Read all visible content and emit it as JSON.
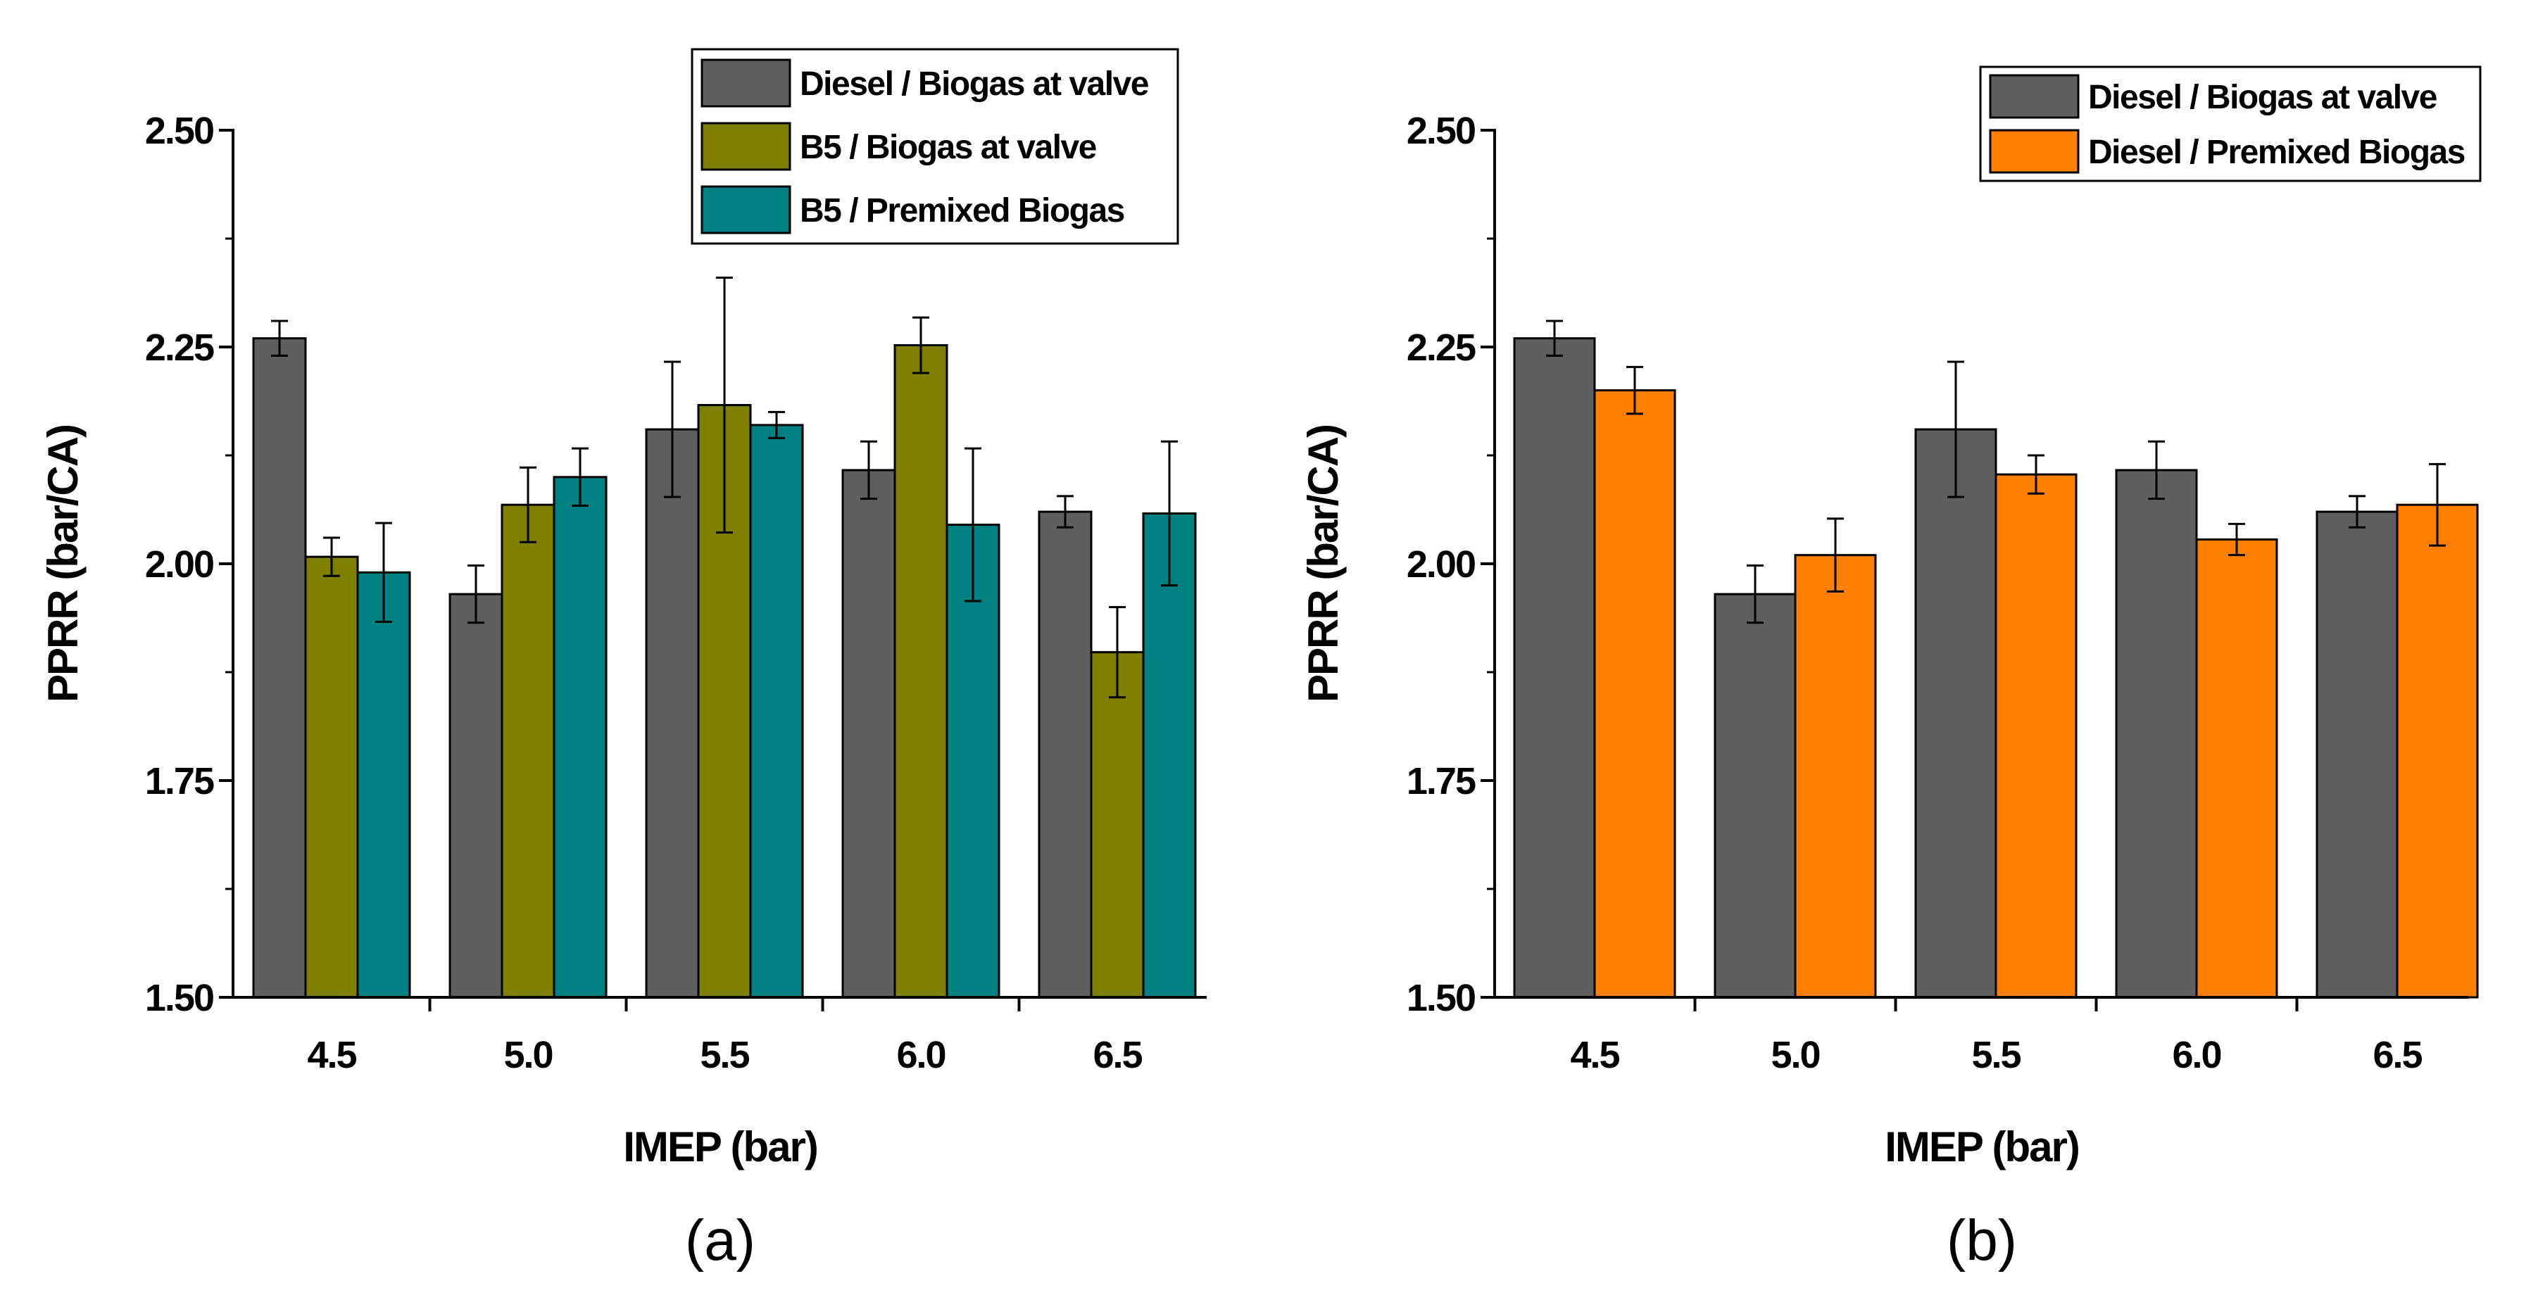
{
  "colors": {
    "diesel_valve": "#5f5f5f",
    "b5_valve": "#7f7f00",
    "b5_premixed": "#008080",
    "diesel_premixed": "#ff8000"
  },
  "chart_data": [
    {
      "type": "bar",
      "panel_label": "(a)",
      "xlabel": "IMEP (bar)",
      "ylabel": "PPRR (bar/CA)",
      "ylim": [
        1.5,
        2.5
      ],
      "yticks": [
        "1.50",
        "1.75",
        "2.00",
        "2.25",
        "2.50"
      ],
      "categories": [
        "4.5",
        "5.0",
        "5.5",
        "6.0",
        "6.5"
      ],
      "legend_position": "top-right",
      "series": [
        {
          "name": "Diesel / Biogas at valve",
          "color_key": "diesel_valve",
          "values": [
            2.26,
            1.965,
            2.155,
            2.108,
            2.06
          ],
          "errors": [
            0.02,
            0.033,
            0.078,
            0.033,
            0.018
          ]
        },
        {
          "name": "B5 / Biogas at valve",
          "color_key": "b5_valve",
          "values": [
            2.008,
            2.068,
            2.183,
            2.252,
            1.898
          ],
          "errors": [
            0.022,
            0.043,
            0.147,
            0.032,
            0.052
          ]
        },
        {
          "name": "B5 / Premixed Biogas",
          "color_key": "b5_premixed",
          "values": [
            1.99,
            2.1,
            2.16,
            2.045,
            2.058
          ],
          "errors": [
            0.057,
            0.033,
            0.015,
            0.088,
            0.083
          ]
        }
      ]
    },
    {
      "type": "bar",
      "panel_label": "(b)",
      "xlabel": "IMEP (bar)",
      "ylabel": "PPRR (bar/CA)",
      "ylim": [
        1.5,
        2.5
      ],
      "yticks": [
        "1.50",
        "1.75",
        "2.00",
        "2.25",
        "2.50"
      ],
      "categories": [
        "4.5",
        "5.0",
        "5.5",
        "6.0",
        "6.5"
      ],
      "legend_position": "top-right",
      "series": [
        {
          "name": "Diesel / Biogas at valve",
          "color_key": "diesel_valve",
          "values": [
            2.26,
            1.965,
            2.155,
            2.108,
            2.06
          ],
          "errors": [
            0.02,
            0.033,
            0.078,
            0.033,
            0.018
          ]
        },
        {
          "name": "Diesel / Premixed Biogas",
          "color_key": "diesel_premixed",
          "values": [
            2.2,
            2.01,
            2.103,
            2.028,
            2.068
          ],
          "errors": [
            0.027,
            0.042,
            0.022,
            0.018,
            0.047
          ]
        }
      ]
    }
  ]
}
